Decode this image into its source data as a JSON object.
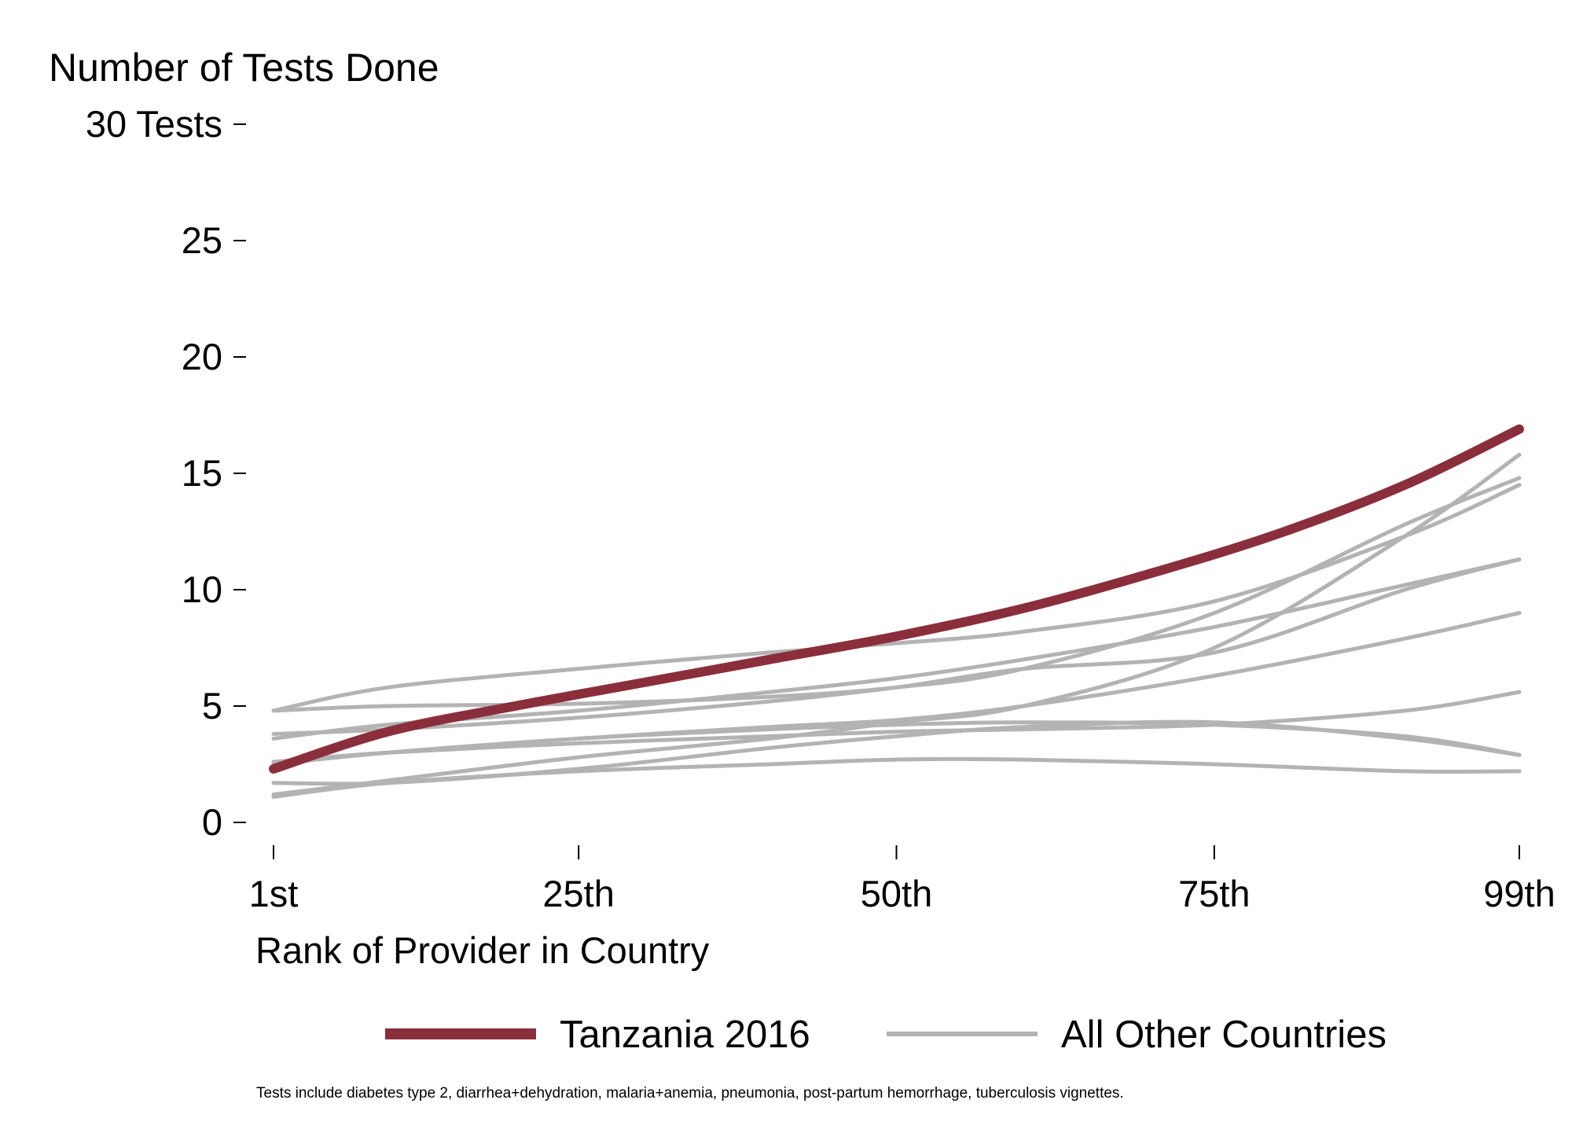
{
  "chart_data": {
    "type": "line",
    "title": "Number of Tests Done",
    "xlabel": "Rank of Provider in Country",
    "ylabel": "Number of Tests Done",
    "xlim": [
      1,
      99
    ],
    "ylim": [
      0,
      30
    ],
    "x_ticks": [
      {
        "value": 1,
        "label": "1st"
      },
      {
        "value": 25,
        "label": "25th"
      },
      {
        "value": 50,
        "label": "50th"
      },
      {
        "value": 75,
        "label": "75th"
      },
      {
        "value": 99,
        "label": "99th"
      }
    ],
    "y_ticks": [
      {
        "value": 0,
        "label": "0"
      },
      {
        "value": 5,
        "label": "5"
      },
      {
        "value": 10,
        "label": "10"
      },
      {
        "value": 15,
        "label": "15"
      },
      {
        "value": 20,
        "label": "20"
      },
      {
        "value": 25,
        "label": "25"
      },
      {
        "value": 30,
        "label": "30 Tests"
      }
    ],
    "grid": false,
    "legend": {
      "position": "bottom"
    },
    "highlight_series": {
      "name": "Tanzania 2016",
      "color": "#8B2E3C",
      "x": [
        1,
        10,
        20,
        30,
        40,
        50,
        60,
        70,
        80,
        90,
        99
      ],
      "y": [
        2.3,
        3.9,
        5.0,
        6.0,
        7.0,
        8.0,
        9.2,
        10.7,
        12.4,
        14.5,
        16.9
      ]
    },
    "background_series": {
      "name": "All Other Countries",
      "color": "#B3B3B3",
      "lines": [
        {
          "x": [
            1,
            10,
            25,
            40,
            50,
            60,
            75,
            90,
            99
          ],
          "y": [
            4.8,
            5.8,
            6.6,
            7.3,
            7.7,
            8.2,
            9.5,
            12.3,
            14.5
          ]
        },
        {
          "x": [
            1,
            10,
            25,
            40,
            50,
            60,
            75,
            90,
            99
          ],
          "y": [
            4.8,
            5.0,
            5.1,
            5.4,
            5.8,
            6.6,
            9.0,
            12.8,
            14.8
          ]
        },
        {
          "x": [
            1,
            10,
            25,
            40,
            50,
            60,
            75,
            90,
            99
          ],
          "y": [
            3.6,
            4.2,
            4.8,
            5.6,
            6.2,
            7.0,
            8.4,
            10.2,
            11.3
          ]
        },
        {
          "x": [
            1,
            10,
            25,
            40,
            50,
            60,
            75,
            90,
            99
          ],
          "y": [
            3.8,
            4.0,
            4.5,
            5.2,
            5.8,
            6.6,
            7.3,
            10.0,
            11.3
          ]
        },
        {
          "x": [
            1,
            10,
            25,
            40,
            50,
            60,
            75,
            90,
            99
          ],
          "y": [
            2.6,
            3.0,
            3.6,
            4.1,
            4.4,
            5.0,
            6.3,
            7.9,
            9.0
          ]
        },
        {
          "x": [
            1,
            10,
            25,
            40,
            50,
            60,
            75,
            90,
            99
          ],
          "y": [
            1.2,
            1.8,
            2.8,
            3.6,
            4.3,
            5.0,
            7.5,
            12.3,
            15.8
          ]
        },
        {
          "x": [
            1,
            10,
            25,
            40,
            50,
            60,
            75,
            90,
            99
          ],
          "y": [
            2.6,
            3.0,
            3.4,
            3.7,
            3.9,
            4.0,
            4.2,
            4.8,
            5.6
          ]
        },
        {
          "x": [
            1,
            10,
            25,
            40,
            50,
            60,
            75,
            90,
            99
          ],
          "y": [
            2.5,
            3.0,
            3.6,
            4.0,
            4.2,
            4.3,
            4.2,
            3.7,
            2.9
          ]
        },
        {
          "x": [
            1,
            10,
            25,
            40,
            50,
            60,
            75,
            90,
            99
          ],
          "y": [
            1.7,
            1.7,
            2.3,
            3.2,
            3.7,
            4.1,
            4.3,
            3.6,
            2.9
          ]
        },
        {
          "x": [
            1,
            10,
            25,
            40,
            50,
            60,
            75,
            90,
            99
          ],
          "y": [
            1.1,
            1.7,
            2.2,
            2.5,
            2.7,
            2.7,
            2.5,
            2.2,
            2.2
          ]
        }
      ]
    },
    "footnote": "Tests include diabetes type 2, diarrhea+dehydration, malaria+anemia, pneumonia, post-partum hemorrhage, tuberculosis vignettes."
  }
}
